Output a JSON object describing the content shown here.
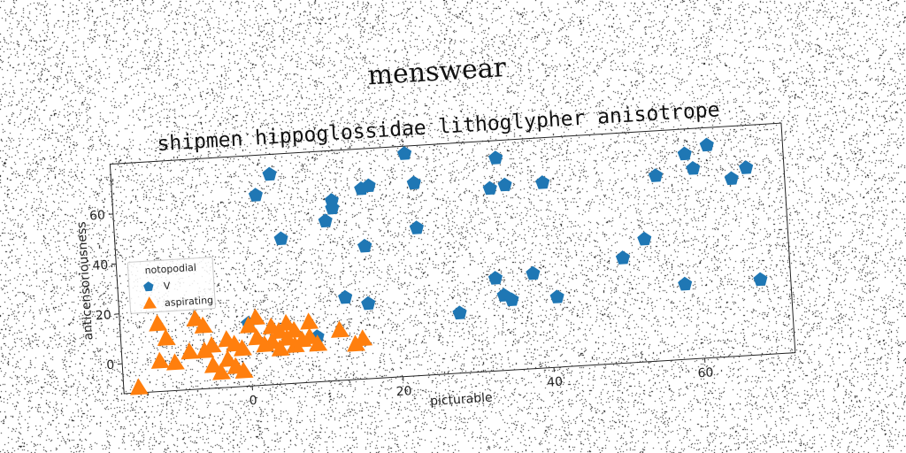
{
  "chart_data": {
    "type": "scatter",
    "title": "menswear",
    "subtitle": "shipmen hippoglossidae lithoglypher anisotrope",
    "xlabel": "picturable",
    "ylabel": "anticensoriousness",
    "xlim": [
      -17,
      72
    ],
    "ylim": [
      -12,
      80
    ],
    "xticks": [
      0,
      20,
      40,
      60
    ],
    "yticks": [
      0,
      20,
      40,
      60
    ],
    "grid": false,
    "legend": {
      "title": "notopodial",
      "placement": "center-left"
    },
    "series": [
      {
        "name": "V",
        "marker": "pentagon",
        "color": "#1f77b4",
        "points": [
          [
            4,
            72
          ],
          [
            2,
            64
          ],
          [
            5,
            46
          ],
          [
            11,
            52
          ],
          [
            12,
            57
          ],
          [
            12,
            60
          ],
          [
            16,
            64
          ],
          [
            17,
            65
          ],
          [
            16,
            41
          ],
          [
            13,
            21
          ],
          [
            16,
            18
          ],
          [
            9,
            6
          ],
          [
            0,
            13
          ],
          [
            22,
            77
          ],
          [
            23,
            65
          ],
          [
            23,
            47
          ],
          [
            28,
            12
          ],
          [
            33,
            25
          ],
          [
            33,
            61
          ],
          [
            34,
            73
          ],
          [
            35,
            62
          ],
          [
            34,
            18
          ],
          [
            35,
            16
          ],
          [
            38,
            26
          ],
          [
            40,
            62
          ],
          [
            41,
            16
          ],
          [
            50,
            30
          ],
          [
            53,
            37
          ],
          [
            55,
            62
          ],
          [
            58,
            18
          ],
          [
            59,
            70
          ],
          [
            60,
            64
          ],
          [
            62,
            73
          ],
          [
            65,
            59
          ],
          [
            67,
            63
          ],
          [
            68,
            18
          ]
        ]
      },
      {
        "name": "aspirating",
        "marker": "triangle",
        "color": "#ff7f0e",
        "points": [
          [
            -15,
            -10
          ],
          [
            -12,
            0
          ],
          [
            -12,
            15
          ],
          [
            -11,
            9
          ],
          [
            -10,
            -1
          ],
          [
            -8,
            3
          ],
          [
            -7,
            16
          ],
          [
            -6,
            13
          ],
          [
            -6,
            3
          ],
          [
            -5,
            -3
          ],
          [
            -5,
            5
          ],
          [
            -4,
            -6
          ],
          [
            -3,
            7
          ],
          [
            -3,
            -1
          ],
          [
            -2,
            -4
          ],
          [
            -2,
            5
          ],
          [
            -1,
            3
          ],
          [
            -1,
            -6
          ],
          [
            0,
            12
          ],
          [
            1,
            7
          ],
          [
            1,
            15
          ],
          [
            2,
            4
          ],
          [
            3,
            11
          ],
          [
            3,
            5
          ],
          [
            4,
            9
          ],
          [
            4,
            2
          ],
          [
            5,
            12
          ],
          [
            5,
            6
          ],
          [
            6,
            3
          ],
          [
            6,
            9
          ],
          [
            7,
            5
          ],
          [
            8,
            12
          ],
          [
            8,
            6
          ],
          [
            9,
            3
          ],
          [
            12,
            8
          ],
          [
            14,
            2
          ],
          [
            15,
            4
          ]
        ]
      }
    ]
  }
}
